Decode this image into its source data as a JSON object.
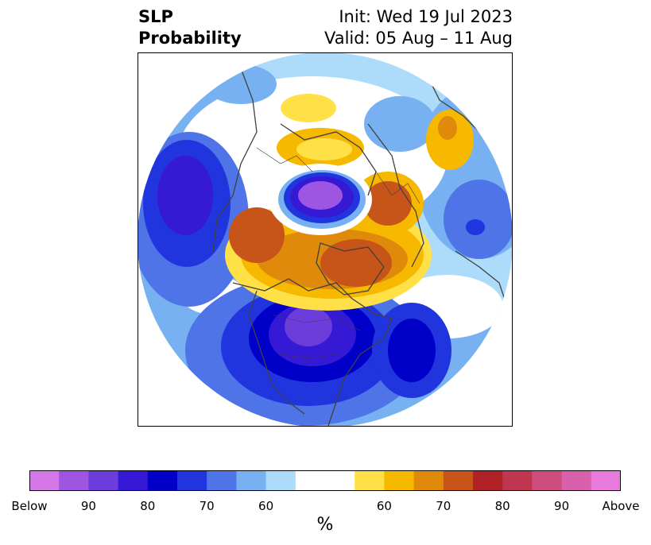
{
  "title": {
    "left_line1": "SLP",
    "left_line2": "Probability",
    "init": "Init: Wed 19 Jul 2023",
    "valid": "Valid: 05 Aug – 11 Aug"
  },
  "colorbar": {
    "units": "%",
    "colors": [
      "#d677e8",
      "#9d55e2",
      "#6c3ddb",
      "#3519d4",
      "#0000c8",
      "#2135de",
      "#4f74e8",
      "#78b1f2",
      "#acdcfa",
      "#ffffff",
      "#ffe047",
      "#f7b800",
      "#e08a0b",
      "#c75418",
      "#b02226",
      "#c03550",
      "#cd4d7e",
      "#d960ad",
      "#e87ade"
    ],
    "tick_labels": [
      "Below",
      "90",
      "80",
      "70",
      "60",
      "60",
      "70",
      "80",
      "90",
      "Above"
    ]
  },
  "colors": {
    "below_strong": "#0000c8",
    "below_core": "#9d55e2",
    "above_strong": "#c75418",
    "coastline": "#404040"
  }
}
